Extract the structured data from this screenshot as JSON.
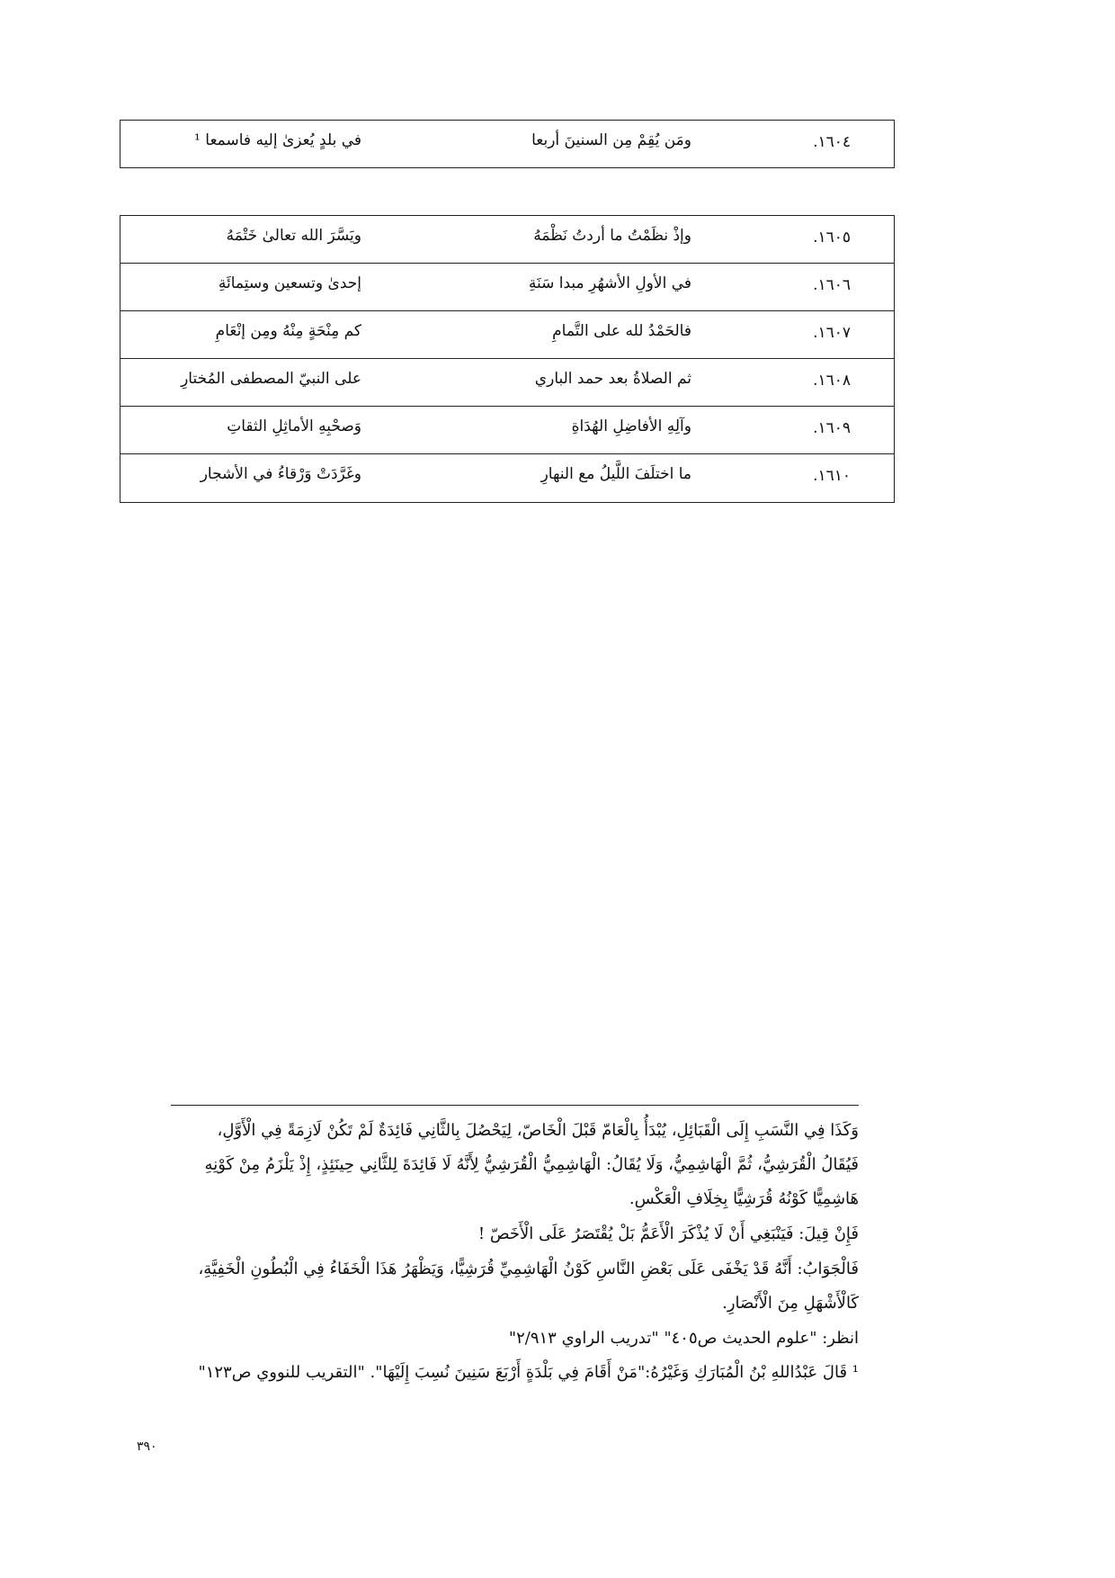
{
  "verse_single": {
    "number": "١٦٠٤.",
    "first": "ومَن يُقِمْ مِن السنينَ أربعا",
    "second": "في بلدٍ يُعزىٰ إليه فاسمعا ¹"
  },
  "verses": [
    {
      "number": "١٦٠٥.",
      "first": "وإذْ نظَمْتُ ما أردتُ نَظْمَهُ",
      "second": "ويَسَّرَ الله تعالىٰ خَتْمَهُ"
    },
    {
      "number": "١٦٠٦.",
      "first": "في الأولِ الأشهُرِ مبدا سَنَةِ",
      "second": "إحدىٰ وتسعين وستِمائَةِ"
    },
    {
      "number": "١٦٠٧.",
      "first": "فالحَمْدُ لله على التَّمامِ",
      "second": "كم مِنْحَةٍ مِنْهُ ومِن إنْعَامِ"
    },
    {
      "number": "١٦٠٨.",
      "first": "ثم الصلاةُ بعد حمد الباري",
      "second": "على النبيّ المصطفى المُختارِ"
    },
    {
      "number": "١٦٠٩.",
      "first": "وآلِهِ الأفاضِلِ الهُدَاةِ",
      "second": "وَصحْبِهِ الأماثِلِ الثقاتِ"
    },
    {
      "number": "١٦١٠.",
      "first": "ما اختلَفَ اللَّيلُ مع النهارِ",
      "second": "وغَرَّدَتْ وَرْقاءُ في الأشجار"
    }
  ],
  "footnotes": [
    "وَكَذَا فِي النَّسَبِ إِلَى الْقَبَائِلِ، يُبْدَأُ بِالْعَامّ قَبْلَ الْخَاصّ، لِيَحْصُلَ بِالثَّانِي فَائِدَةٌ لَمْ تَكُنْ لَازِمَةً فِي الْأَوَّلِ،",
    "فَيُقَالُ الْقُرَشِيُّ، ثُمَّ الْهَاشِمِيُّ، وَلَا يُقَالُ: الْهَاشِمِيُّ الْقُرَشِيُّ لِأَنَّهُ لَا فَائِدَةَ لِلثَّانِي حِينَئِذٍ، إِذْ يَلْزَمُ مِنْ كَوْنِهِ",
    "هَاشِمِيًّا كَوْنُهُ قُرَشِيًّا بِخِلَافِ الْعَكْسِ.",
    "فَإِنْ قِيلَ: فَيَنْبَغِي أَنْ لَا يُذْكَرَ الْأَعَمُّ بَلْ يُقْتَصَرُ عَلَى الْأَخَصّ !",
    "فَالْجَوَابُ: أَنَّهُ قَدْ يَخْفَى عَلَى بَعْضِ النَّاسِ كَوْنُ الْهَاشِمِيِّ قُرَشِيًّا، وَيَظْهَرُ هَذَا الْخَفَاءُ فِي الْبُطُونِ الْخَفِيَّةِ،",
    "كَالْأَشْهَلِ مِنَ الْأَنْصَارِ.",
    "انظر: \"علوم الحديث ص٤٠٥\" \"تدريب الراوي ٢/٩١٣\"",
    "¹ قَالَ عَبْدُاللهِ بْنُ الْمُبَارَكِ وَغَيْرُهُ:\"مَنْ أَقَامَ فِي بَلْدَةٍ أَرْبَعَ سَنِينَ نُسِبَ إِلَيْهَا\". \"التقريب للنووي ص١٢٣\""
  ],
  "page_number": "٣٩٠"
}
